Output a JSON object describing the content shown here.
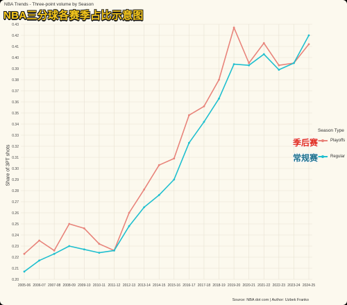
{
  "header": {
    "subtitle": "NBA Trends - Three-point volume by Season",
    "title": "NBA三分球各赛季占比示意图"
  },
  "colors": {
    "background": "#fcf9ee",
    "grid": "#e7e2d2",
    "playoffs": "#e8837a",
    "regular": "#1fbfcf",
    "title_fill": "#f7c81a",
    "ann_playoffs": "#e0281c",
    "ann_regular": "#1b6f8c"
  },
  "legend": {
    "title": "Season Type",
    "items": [
      {
        "label": "Playoffs",
        "annotation": "季后赛"
      },
      {
        "label": "Regular",
        "annotation": "常规赛"
      }
    ]
  },
  "source": "Source: NBA dot com | Author: Uzbek Franko",
  "chart_data": {
    "type": "line",
    "ylabel": "Share of 3PT shots",
    "xlabel": "",
    "ylim": [
      0.2,
      0.43
    ],
    "yticks": [
      0.2,
      0.21,
      0.22,
      0.23,
      0.24,
      0.25,
      0.26,
      0.27,
      0.28,
      0.29,
      0.3,
      0.31,
      0.32,
      0.33,
      0.34,
      0.35,
      0.36,
      0.37,
      0.38,
      0.39,
      0.4,
      0.41,
      0.42,
      0.43
    ],
    "grid": true,
    "legend_position": "right",
    "categories": [
      "2005-06",
      "2006-07",
      "2007-08",
      "2008-09",
      "2009-10",
      "2010-11",
      "2011-12",
      "2012-13",
      "2013-14",
      "2014-15",
      "2015-16",
      "2016-17",
      "2017-18",
      "2018-19",
      "2019-20",
      "2020-21",
      "2021-22",
      "2022-23",
      "2023-24",
      "2024-25"
    ],
    "series": [
      {
        "name": "Playoffs",
        "values": [
          0.223,
          0.235,
          0.226,
          0.25,
          0.246,
          0.232,
          0.226,
          0.26,
          0.281,
          0.303,
          0.309,
          0.348,
          0.356,
          0.38,
          0.427,
          0.395,
          0.413,
          0.393,
          0.395,
          0.412
        ]
      },
      {
        "name": "Regular",
        "values": [
          0.207,
          0.217,
          0.223,
          0.23,
          0.227,
          0.224,
          0.226,
          0.248,
          0.265,
          0.276,
          0.29,
          0.323,
          0.342,
          0.363,
          0.394,
          0.393,
          0.403,
          0.389,
          0.395,
          0.42
        ]
      }
    ]
  }
}
